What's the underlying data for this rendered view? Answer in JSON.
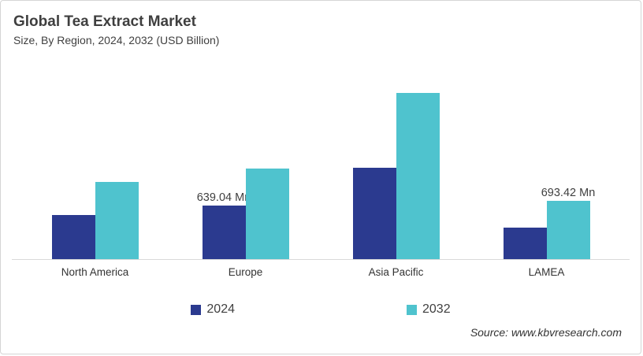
{
  "header": {
    "title": "Global Tea Extract Market",
    "subtitle": "Size, By Region, 2024, 2032 (USD Billion)"
  },
  "source": "Source: www.kbvresearch.com",
  "colors": {
    "series_2024": "#2b3a8f",
    "series_2032": "#4fc3ce",
    "axis_line": "#d9d9d9",
    "title_text": "#3f3f3f"
  },
  "chart_data": {
    "type": "bar",
    "title": "Global Tea Extract Market",
    "subtitle": "Size, By Region, 2024, 2032 (USD Billion)",
    "unit": "USD Million",
    "categories": [
      "North America",
      "Europe",
      "Asia Pacific",
      "LAMEA"
    ],
    "series": [
      {
        "name": "2024",
        "color": "#2b3a8f",
        "values": [
          530,
          639.04,
          1090,
          375
        ],
        "data_labels": [
          null,
          "639.04 Mn",
          null,
          null
        ]
      },
      {
        "name": "2032",
        "color": "#4fc3ce",
        "values": [
          925,
          1080,
          1985,
          693.42
        ],
        "data_labels": [
          null,
          null,
          null,
          "693.42 Mn"
        ]
      }
    ],
    "ylim": [
      0,
      2100
    ],
    "grid": false,
    "axes_labeled": false,
    "legend_position": "bottom"
  }
}
